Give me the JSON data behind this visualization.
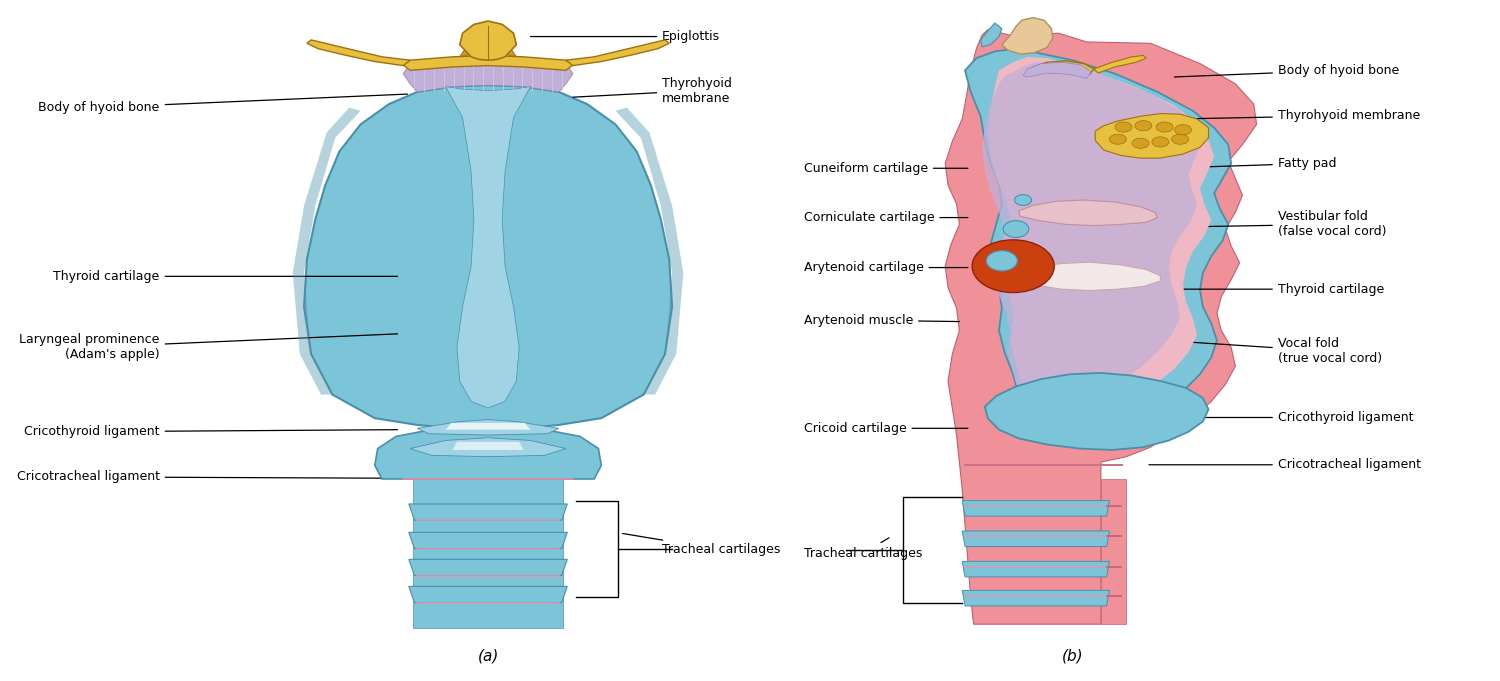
{
  "background_color": "#ffffff",
  "fig_width": 15.0,
  "fig_height": 6.81,
  "title_a": "(a)",
  "title_b": "(b)",
  "sky_blue": "#7CC5D8",
  "light_blue": "#A0D4E4",
  "dark_blue": "#4A8FAA",
  "pink_main": "#F09098",
  "pink_light": "#F5B8C0",
  "pink_dark": "#C06070",
  "gold_main": "#D4A020",
  "gold_light": "#E8C040",
  "gold_dark": "#A07010",
  "purple_tint": "#C0B0D8",
  "red_orange": "#CC4010",
  "white_ish": "#EEF5F8",
  "labels_left_a": [
    {
      "text": "Body of hyoid bone",
      "xt": 0.055,
      "yt": 0.845,
      "xp": 0.232,
      "yp": 0.865
    },
    {
      "text": "Thyroid cartilage",
      "xt": 0.055,
      "yt": 0.595,
      "xp": 0.225,
      "yp": 0.595
    },
    {
      "text": "Laryngeal prominence\n(Adam's apple)",
      "xt": 0.055,
      "yt": 0.49,
      "xp": 0.225,
      "yp": 0.51
    },
    {
      "text": "Cricothyroid ligament",
      "xt": 0.055,
      "yt": 0.365,
      "xp": 0.225,
      "yp": 0.368
    },
    {
      "text": "Cricotracheal ligament",
      "xt": 0.055,
      "yt": 0.298,
      "xp": 0.23,
      "yp": 0.296
    }
  ],
  "labels_right_a": [
    {
      "text": "Epiglottis",
      "xt": 0.41,
      "yt": 0.95,
      "xp": 0.315,
      "yp": 0.95
    },
    {
      "text": "Thyrohyoid\nmembrane",
      "xt": 0.41,
      "yt": 0.87,
      "xp": 0.345,
      "yp": 0.86
    },
    {
      "text": "Tracheal cartilages",
      "xt": 0.41,
      "yt": 0.19,
      "xp": 0.38,
      "yp": 0.215
    }
  ],
  "labels_left_b": [
    {
      "text": "Cuneiform cartilage",
      "xt": 0.51,
      "yt": 0.755,
      "xp": 0.628,
      "yp": 0.755
    },
    {
      "text": "Corniculate cartilage",
      "xt": 0.51,
      "yt": 0.682,
      "xp": 0.628,
      "yp": 0.682
    },
    {
      "text": "Arytenoid cartilage",
      "xt": 0.51,
      "yt": 0.608,
      "xp": 0.628,
      "yp": 0.608
    },
    {
      "text": "Arytenoid muscle",
      "xt": 0.51,
      "yt": 0.53,
      "xp": 0.622,
      "yp": 0.528
    },
    {
      "text": "Cricoid cartilage",
      "xt": 0.51,
      "yt": 0.37,
      "xp": 0.628,
      "yp": 0.37
    },
    {
      "text": "Tracheal cartilages",
      "xt": 0.51,
      "yt": 0.185,
      "xp": 0.572,
      "yp": 0.21
    }
  ],
  "labels_right_b": [
    {
      "text": "Body of hyoid bone",
      "xt": 0.845,
      "yt": 0.9,
      "xp": 0.77,
      "yp": 0.89
    },
    {
      "text": "Thyrohyoid membrane",
      "xt": 0.845,
      "yt": 0.833,
      "xp": 0.775,
      "yp": 0.828
    },
    {
      "text": "Fatty pad",
      "xt": 0.845,
      "yt": 0.762,
      "xp": 0.778,
      "yp": 0.756
    },
    {
      "text": "Vestibular fold\n(false vocal cord)",
      "xt": 0.845,
      "yt": 0.672,
      "xp": 0.773,
      "yp": 0.668
    },
    {
      "text": "Thyroid cartilage",
      "xt": 0.845,
      "yt": 0.576,
      "xp": 0.77,
      "yp": 0.576
    },
    {
      "text": "Vocal fold\n(true vocal cord)",
      "xt": 0.845,
      "yt": 0.484,
      "xp": 0.765,
      "yp": 0.5
    },
    {
      "text": "Cricothyroid ligament",
      "xt": 0.845,
      "yt": 0.386,
      "xp": 0.758,
      "yp": 0.386
    },
    {
      "text": "Cricotracheal ligament",
      "xt": 0.845,
      "yt": 0.316,
      "xp": 0.752,
      "yp": 0.316
    }
  ],
  "font_size": 9.0
}
